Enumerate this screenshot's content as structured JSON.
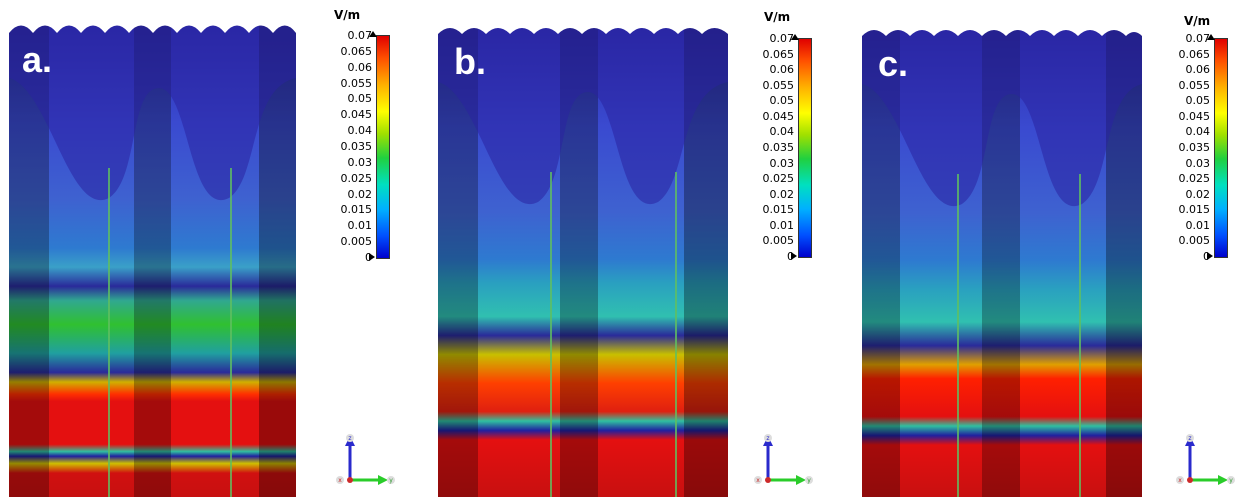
{
  "panels": [
    {
      "label": "a."
    },
    {
      "label": "b."
    },
    {
      "label": "c."
    }
  ],
  "colorbar": {
    "unit": "V/m",
    "ticks": [
      "0.07",
      "0.065",
      "0.06",
      "0.055",
      "0.05",
      "0.045",
      "0.04",
      "0.035",
      "0.03",
      "0.025",
      "0.02",
      "0.015",
      "0.01",
      "0.005",
      "0"
    ],
    "colors": [
      "#0000cc",
      "#0050ff",
      "#00b0ff",
      "#00e0c0",
      "#20d040",
      "#a0e000",
      "#ffff00",
      "#ffb000",
      "#ff5000",
      "#e00000"
    ]
  },
  "axes_triad": {
    "z": "z",
    "x": "x",
    "y": "y"
  }
}
